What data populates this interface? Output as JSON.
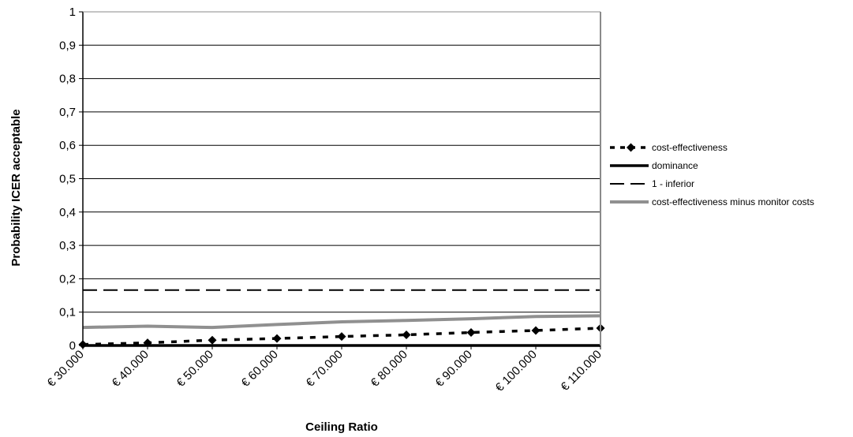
{
  "chart_data": {
    "type": "line",
    "title": "",
    "xlabel": "Ceiling Ratio",
    "ylabel": "Probability ICER acceptable",
    "categories": [
      "€ 30.000",
      "€ 40.000",
      "€ 50.000",
      "€ 60.000",
      "€ 70.000",
      "€ 80.000",
      "€ 90.000",
      "€ 100.000",
      "€ 110.000"
    ],
    "y_ticks": [
      "0",
      "0,1",
      "0,2",
      "0,3",
      "0,4",
      "0,5",
      "0,6",
      "0,7",
      "0,8",
      "0,9",
      "1"
    ],
    "ylim": [
      0,
      1
    ],
    "grid": "horizontal",
    "legend_position": "right",
    "series": [
      {
        "name": "cost-effectiveness",
        "style": "dotted-diamond",
        "color": "#000000",
        "values": [
          0.003,
          0.008,
          0.016,
          0.021,
          0.027,
          0.032,
          0.039,
          0.045,
          0.052
        ]
      },
      {
        "name": "dominance",
        "style": "solid",
        "color": "#000000",
        "values": [
          0,
          0,
          0,
          0,
          0,
          0,
          0,
          0,
          0
        ]
      },
      {
        "name": "1 - inferior",
        "style": "dashed",
        "color": "#000000",
        "values": [
          0.166,
          0.166,
          0.166,
          0.166,
          0.166,
          0.166,
          0.166,
          0.166,
          0.166
        ]
      },
      {
        "name": "cost-effectiveness minus monitor costs",
        "style": "solid-gray",
        "color": "#909090",
        "values": [
          0.054,
          0.058,
          0.054,
          0.063,
          0.071,
          0.075,
          0.08,
          0.087,
          0.089
        ]
      }
    ]
  }
}
